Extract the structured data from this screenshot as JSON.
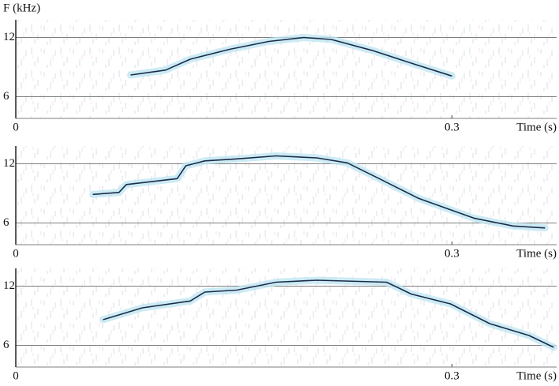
{
  "chart_data": [
    {
      "type": "line",
      "y_label": "F (kHz)",
      "x_label": "Time (s)",
      "x": [
        0.079,
        0.103,
        0.12,
        0.147,
        0.174,
        0.198,
        0.217,
        0.245,
        0.272,
        0.3
      ],
      "values": [
        8.2,
        8.7,
        9.8,
        10.8,
        11.6,
        12.0,
        11.8,
        10.7,
        9.4,
        8.1
      ],
      "color": "#1c2c48",
      "xlim": [
        0,
        0.372
      ],
      "ylim": [
        3.8,
        13.8
      ],
      "xticks": [
        0,
        0.3
      ],
      "yticks": [
        6,
        12
      ],
      "grid": true
    },
    {
      "type": "line",
      "x_label": "Time (s)",
      "x": [
        0.053,
        0.071,
        0.076,
        0.111,
        0.117,
        0.13,
        0.152,
        0.179,
        0.207,
        0.228,
        0.25,
        0.277,
        0.315,
        0.342,
        0.364
      ],
      "values": [
        8.9,
        9.1,
        9.9,
        10.5,
        11.8,
        12.3,
        12.5,
        12.8,
        12.6,
        12.1,
        10.5,
        8.5,
        6.5,
        5.7,
        5.5
      ],
      "color": "#1c2c48",
      "xlim": [
        0,
        0.372
      ],
      "ylim": [
        3.8,
        13.8
      ],
      "xticks": [
        0,
        0.3
      ],
      "yticks": [
        6,
        12
      ],
      "grid": true
    },
    {
      "type": "line",
      "x_label": "Time (s)",
      "x": [
        0.06,
        0.087,
        0.12,
        0.13,
        0.152,
        0.179,
        0.207,
        0.255,
        0.272,
        0.299,
        0.326,
        0.353,
        0.37
      ],
      "values": [
        8.6,
        9.8,
        10.5,
        11.4,
        11.6,
        12.4,
        12.6,
        12.4,
        11.2,
        10.2,
        8.2,
        7.0,
        5.8
      ],
      "color": "#1c2c48",
      "xlim": [
        0,
        0.372
      ],
      "ylim": [
        3.8,
        13.8
      ],
      "xticks": [
        0,
        0.3
      ],
      "yticks": [
        6,
        12
      ],
      "grid": true
    }
  ]
}
